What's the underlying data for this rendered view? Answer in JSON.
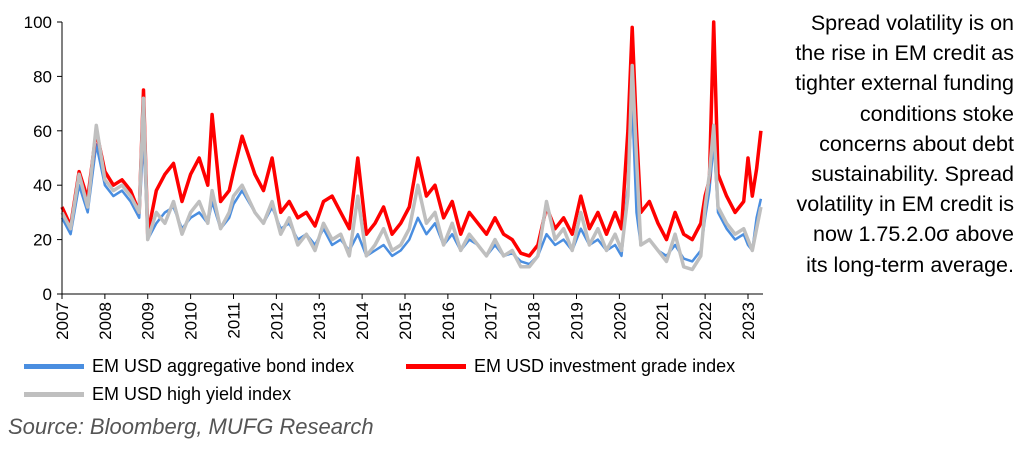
{
  "chart_data": {
    "type": "line",
    "ylim": [
      0,
      100
    ],
    "yticks": [
      0,
      20,
      40,
      60,
      80,
      100
    ],
    "xlim": [
      2007,
      2023.35
    ],
    "xticks": [
      "2007",
      "2008",
      "2009",
      "2010",
      "2011",
      "2012",
      "2013",
      "2014",
      "2015",
      "2016",
      "2017",
      "2018",
      "2019",
      "2020",
      "2021",
      "2022",
      "2023"
    ],
    "legend_position": "bottom",
    "series": [
      {
        "name": "EM USD aggregative bond index",
        "color": "#4a8ee0",
        "x": [
          2007.0,
          2007.2,
          2007.4,
          2007.6,
          2007.8,
          2008.0,
          2008.2,
          2008.4,
          2008.6,
          2008.8,
          2008.9,
          2009.0,
          2009.2,
          2009.4,
          2009.6,
          2009.8,
          2010.0,
          2010.2,
          2010.4,
          2010.5,
          2010.7,
          2010.9,
          2011.0,
          2011.2,
          2011.5,
          2011.7,
          2011.9,
          2012.1,
          2012.3,
          2012.5,
          2012.7,
          2012.9,
          2013.1,
          2013.3,
          2013.5,
          2013.7,
          2013.9,
          2014.1,
          2014.3,
          2014.5,
          2014.7,
          2014.9,
          2015.1,
          2015.3,
          2015.5,
          2015.7,
          2015.9,
          2016.1,
          2016.3,
          2016.5,
          2016.7,
          2016.9,
          2017.1,
          2017.3,
          2017.5,
          2017.7,
          2017.9,
          2018.1,
          2018.3,
          2018.5,
          2018.7,
          2018.9,
          2019.1,
          2019.3,
          2019.5,
          2019.7,
          2019.9,
          2020.05,
          2020.2,
          2020.3,
          2020.4,
          2020.5,
          2020.7,
          2020.9,
          2021.1,
          2021.3,
          2021.5,
          2021.7,
          2021.9,
          2022.0,
          2022.1,
          2022.2,
          2022.3,
          2022.5,
          2022.7,
          2022.9,
          2023.0,
          2023.1,
          2023.2,
          2023.3
        ],
        "values": [
          28,
          22,
          40,
          30,
          55,
          40,
          36,
          38,
          34,
          28,
          58,
          20,
          26,
          30,
          32,
          24,
          28,
          30,
          26,
          34,
          24,
          28,
          33,
          38,
          30,
          26,
          32,
          24,
          26,
          20,
          22,
          18,
          24,
          18,
          20,
          16,
          22,
          14,
          16,
          18,
          14,
          16,
          20,
          28,
          22,
          26,
          18,
          22,
          16,
          20,
          18,
          14,
          18,
          14,
          15,
          12,
          11,
          14,
          22,
          18,
          20,
          16,
          24,
          18,
          20,
          16,
          18,
          14,
          40,
          70,
          30,
          18,
          20,
          16,
          14,
          18,
          13,
          12,
          16,
          28,
          38,
          56,
          30,
          24,
          20,
          22,
          18,
          16,
          28,
          35
        ]
      },
      {
        "name": "EM USD investment grade index",
        "color": "#ff0000",
        "x": [
          2007.0,
          2007.2,
          2007.4,
          2007.6,
          2007.8,
          2008.0,
          2008.2,
          2008.4,
          2008.6,
          2008.8,
          2008.9,
          2009.0,
          2009.2,
          2009.4,
          2009.6,
          2009.8,
          2010.0,
          2010.2,
          2010.4,
          2010.5,
          2010.7,
          2010.9,
          2011.0,
          2011.2,
          2011.5,
          2011.7,
          2011.9,
          2012.1,
          2012.3,
          2012.5,
          2012.7,
          2012.9,
          2013.1,
          2013.3,
          2013.5,
          2013.7,
          2013.9,
          2014.1,
          2014.3,
          2014.5,
          2014.7,
          2014.9,
          2015.1,
          2015.3,
          2015.5,
          2015.7,
          2015.9,
          2016.1,
          2016.3,
          2016.5,
          2016.7,
          2016.9,
          2017.1,
          2017.3,
          2017.5,
          2017.7,
          2017.9,
          2018.1,
          2018.3,
          2018.5,
          2018.7,
          2018.9,
          2019.1,
          2019.3,
          2019.5,
          2019.7,
          2019.9,
          2020.05,
          2020.2,
          2020.3,
          2020.4,
          2020.5,
          2020.7,
          2020.9,
          2021.1,
          2021.3,
          2021.5,
          2021.7,
          2021.9,
          2022.0,
          2022.1,
          2022.2,
          2022.3,
          2022.5,
          2022.7,
          2022.9,
          2023.0,
          2023.1,
          2023.2,
          2023.3
        ],
        "values": [
          32,
          25,
          45,
          35,
          60,
          45,
          40,
          42,
          38,
          30,
          75,
          22,
          38,
          44,
          48,
          34,
          44,
          50,
          40,
          66,
          34,
          38,
          45,
          58,
          44,
          38,
          50,
          30,
          34,
          28,
          30,
          25,
          34,
          36,
          30,
          24,
          50,
          22,
          26,
          32,
          22,
          26,
          32,
          50,
          36,
          40,
          28,
          34,
          22,
          30,
          26,
          22,
          28,
          22,
          20,
          15,
          14,
          18,
          32,
          24,
          28,
          22,
          36,
          24,
          30,
          22,
          30,
          24,
          60,
          98,
          60,
          30,
          34,
          26,
          20,
          30,
          22,
          20,
          26,
          36,
          42,
          100,
          44,
          36,
          30,
          34,
          50,
          36,
          46,
          60
        ]
      },
      {
        "name": "EM USD high yield index",
        "color": "#bfbfbf",
        "x": [
          2007.0,
          2007.2,
          2007.4,
          2007.6,
          2007.8,
          2008.0,
          2008.2,
          2008.4,
          2008.6,
          2008.8,
          2008.9,
          2009.0,
          2009.2,
          2009.4,
          2009.6,
          2009.8,
          2010.0,
          2010.2,
          2010.4,
          2010.5,
          2010.7,
          2010.9,
          2011.0,
          2011.2,
          2011.5,
          2011.7,
          2011.9,
          2012.1,
          2012.3,
          2012.5,
          2012.7,
          2012.9,
          2013.1,
          2013.3,
          2013.5,
          2013.7,
          2013.9,
          2014.1,
          2014.3,
          2014.5,
          2014.7,
          2014.9,
          2015.1,
          2015.3,
          2015.5,
          2015.7,
          2015.9,
          2016.1,
          2016.3,
          2016.5,
          2016.7,
          2016.9,
          2017.1,
          2017.3,
          2017.5,
          2017.7,
          2017.9,
          2018.1,
          2018.3,
          2018.5,
          2018.7,
          2018.9,
          2019.1,
          2019.3,
          2019.5,
          2019.7,
          2019.9,
          2020.05,
          2020.2,
          2020.3,
          2020.4,
          2020.5,
          2020.7,
          2020.9,
          2021.1,
          2021.3,
          2021.5,
          2021.7,
          2021.9,
          2022.0,
          2022.1,
          2022.2,
          2022.3,
          2022.5,
          2022.7,
          2022.9,
          2023.0,
          2023.1,
          2023.2,
          2023.3
        ],
        "values": [
          30,
          24,
          44,
          32,
          62,
          42,
          38,
          40,
          36,
          30,
          72,
          20,
          30,
          26,
          34,
          22,
          30,
          34,
          26,
          38,
          24,
          30,
          36,
          40,
          30,
          26,
          34,
          22,
          28,
          18,
          22,
          16,
          26,
          20,
          22,
          14,
          36,
          14,
          18,
          24,
          16,
          18,
          24,
          40,
          26,
          30,
          18,
          26,
          16,
          22,
          18,
          14,
          20,
          14,
          16,
          10,
          10,
          14,
          34,
          20,
          24,
          16,
          30,
          18,
          24,
          16,
          22,
          16,
          36,
          84,
          50,
          18,
          20,
          16,
          12,
          22,
          10,
          9,
          14,
          32,
          44,
          62,
          32,
          26,
          22,
          24,
          20,
          16,
          24,
          32
        ]
      }
    ]
  },
  "legend": {
    "items": [
      "EM USD aggregative bond index",
      "EM USD investment grade index",
      "EM USD high yield index"
    ]
  },
  "source": "Source: Bloomberg, MUFG Research",
  "annotation": "Spread volatility is on the rise in EM credit as tighter external funding conditions stoke concerns about debt sustainability. Spread volatility in EM credit is now 1.75.2.0σ above its long-term average."
}
